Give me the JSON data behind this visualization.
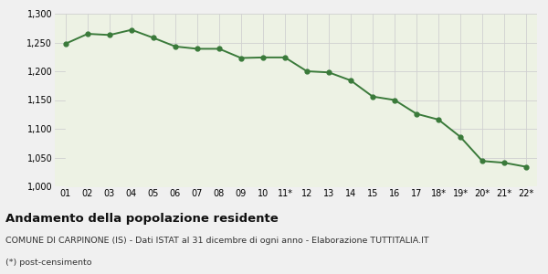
{
  "x_labels": [
    "01",
    "02",
    "03",
    "04",
    "05",
    "06",
    "07",
    "08",
    "09",
    "10",
    "11*",
    "12",
    "13",
    "14",
    "15",
    "16",
    "17",
    "18*",
    "19*",
    "20*",
    "21*",
    "22*"
  ],
  "values": [
    1248,
    1265,
    1263,
    1272,
    1258,
    1243,
    1239,
    1239,
    1223,
    1224,
    1224,
    1200,
    1198,
    1184,
    1156,
    1150,
    1126,
    1116,
    1086,
    1044,
    1041,
    1034
  ],
  "ylim": [
    1000,
    1300
  ],
  "yticks": [
    1000,
    1050,
    1100,
    1150,
    1200,
    1250,
    1300
  ],
  "line_color": "#3a7a3a",
  "fill_color": "#edf2e4",
  "marker_size": 3.5,
  "line_width": 1.4,
  "bg_color": "#f0f0f0",
  "grid_color": "#d0d0d0",
  "title": "Andamento della popolazione residente",
  "subtitle": "COMUNE DI CARPINONE (IS) - Dati ISTAT al 31 dicembre di ogni anno - Elaborazione TUTTITALIA.IT",
  "footnote": "(*) post-censimento",
  "title_fontsize": 9.5,
  "subtitle_fontsize": 6.8,
  "footnote_fontsize": 6.8,
  "tick_fontsize": 7.0
}
